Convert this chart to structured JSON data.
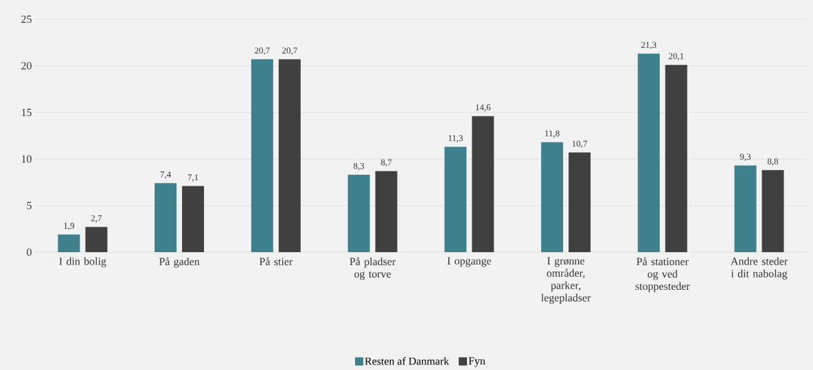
{
  "chart_data": {
    "type": "bar",
    "categories": [
      "I din bolig",
      "På gaden",
      "På stier",
      "På pladser og torve",
      "I opgange",
      "I grønne områder, parker, legepladser",
      "På stationer og ved stoppesteder",
      "Andre steder i dit nabolag"
    ],
    "series": [
      {
        "name": "Resten af Danmark",
        "color": "#3e808b",
        "values": [
          1.9,
          7.4,
          20.7,
          8.3,
          11.3,
          11.8,
          21.3,
          9.3
        ],
        "value_labels": [
          "1,9",
          "7,4",
          "20,7",
          "8,3",
          "11,3",
          "11,8",
          "21,3",
          "9,3"
        ]
      },
      {
        "name": "Fyn",
        "color": "#404040",
        "values": [
          2.7,
          7.1,
          20.7,
          8.7,
          14.6,
          10.7,
          20.1,
          8.8
        ],
        "value_labels": [
          "2,7",
          "7,1",
          "20,7",
          "8,7",
          "14,6",
          "10,7",
          "20,1",
          "8,8"
        ]
      }
    ],
    "ylim": [
      0,
      25
    ],
    "yticks": [
      0,
      5,
      10,
      15,
      20,
      25
    ],
    "grid": "y",
    "legend": "bottom"
  }
}
